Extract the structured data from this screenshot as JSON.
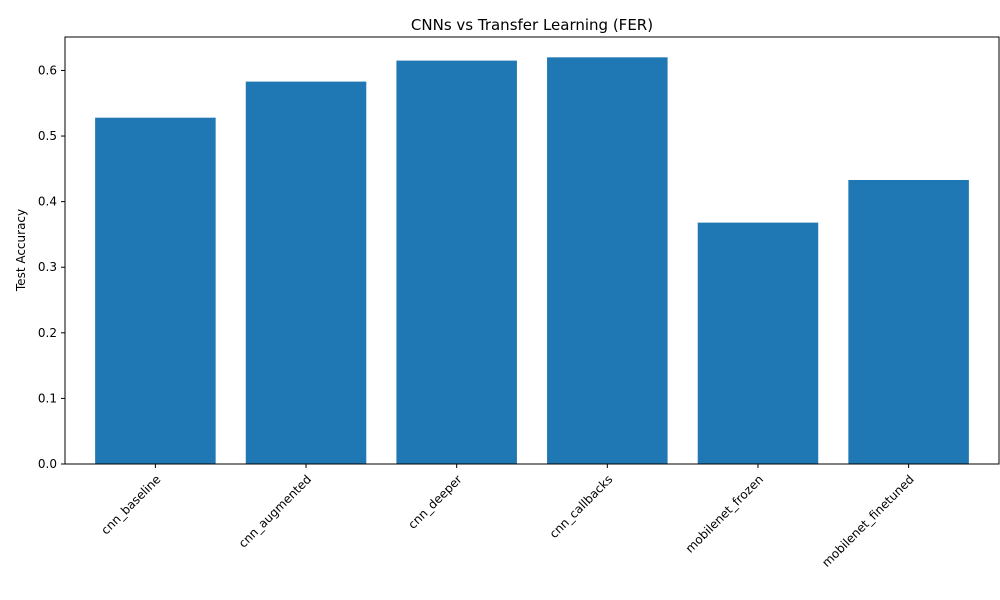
{
  "chart_data": {
    "type": "bar",
    "title": "CNNs vs Transfer Learning (FER)",
    "xlabel": "",
    "ylabel": "Test Accuracy",
    "categories": [
      "cnn_baseline",
      "cnn_augmented",
      "cnn_deeper",
      "cnn_callbacks",
      "mobilenet_frozen",
      "mobilenet_finetuned"
    ],
    "values": [
      0.528,
      0.583,
      0.615,
      0.62,
      0.368,
      0.433
    ],
    "ylim": [
      0,
      0.651
    ],
    "yticks": [
      0.0,
      0.1,
      0.2,
      0.3,
      0.4,
      0.5,
      0.6
    ],
    "ytick_labels": [
      "0.0",
      "0.1",
      "0.2",
      "0.3",
      "0.4",
      "0.5",
      "0.6"
    ],
    "grid": false,
    "legend": "none",
    "bar_color": "#1f77b4",
    "axis_color": "#000000",
    "background_color": "#ffffff"
  }
}
